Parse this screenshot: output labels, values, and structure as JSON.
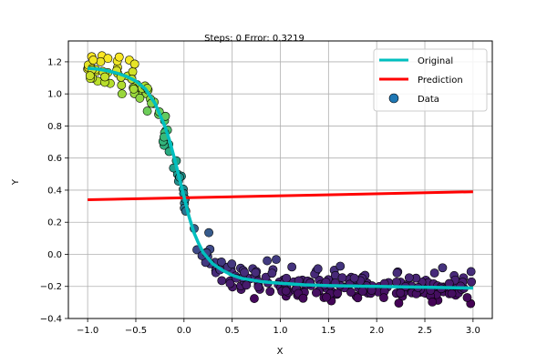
{
  "chart_data": {
    "type": "scatter",
    "title": "Steps: 0 Error: 0.3219",
    "xlabel": "X",
    "ylabel": "Y",
    "xlim": [
      -1.2,
      3.2
    ],
    "ylim": [
      -0.4,
      1.33
    ],
    "xticks": [
      -1.0,
      -0.5,
      0.0,
      0.5,
      1.0,
      1.5,
      2.0,
      2.5,
      3.0
    ],
    "yticks": [
      -0.4,
      -0.2,
      0.0,
      0.2,
      0.4,
      0.6,
      0.8,
      1.0,
      1.2
    ],
    "grid": true,
    "legend_position": "top-right",
    "series": [
      {
        "name": "Original",
        "kind": "line",
        "color": "#00bfbf",
        "x": [
          -1.0,
          -0.9,
          -0.8,
          -0.7,
          -0.6,
          -0.5,
          -0.4,
          -0.3,
          -0.2,
          -0.15,
          -0.1,
          -0.05,
          0.0,
          0.05,
          0.1,
          0.15,
          0.2,
          0.3,
          0.4,
          0.5,
          0.6,
          0.8,
          1.0,
          1.25,
          1.5,
          2.0,
          2.5,
          3.0
        ],
        "y": [
          1.16,
          1.155,
          1.145,
          1.13,
          1.11,
          1.08,
          1.03,
          0.94,
          0.8,
          0.71,
          0.6,
          0.48,
          0.36,
          0.24,
          0.14,
          0.07,
          0.01,
          -0.06,
          -0.1,
          -0.13,
          -0.15,
          -0.17,
          -0.18,
          -0.19,
          -0.195,
          -0.2,
          -0.205,
          -0.21
        ]
      },
      {
        "name": "Prediction",
        "kind": "line",
        "color": "#ff0000",
        "x": [
          -1.0,
          3.0
        ],
        "y": [
          0.34,
          0.39
        ]
      },
      {
        "name": "Data",
        "kind": "scatter",
        "legend_color": "#1f77b4",
        "count": 300,
        "noise": 0.05,
        "seed": 7,
        "x_range": [
          -1.0,
          3.0
        ],
        "colormap": "viridis"
      }
    ]
  }
}
